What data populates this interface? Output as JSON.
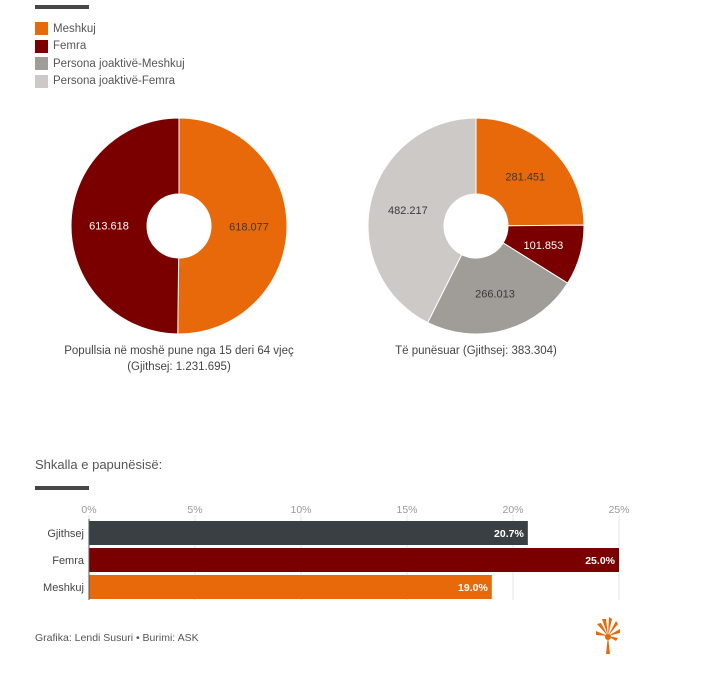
{
  "legend": [
    {
      "label": "Meshkuj",
      "color": "#E8690A"
    },
    {
      "label": "Femra",
      "color": "#7A0000"
    },
    {
      "label": "Persona joaktivë-Meshkuj",
      "color": "#A09C98"
    },
    {
      "label": "Persona joaktivë-Femra",
      "color": "#CDC9C6"
    }
  ],
  "charts": {
    "population_caption_line1": "Popullsia në moshë pune nga 15 deri 64 vjeç",
    "population_caption_line2": "(Gjithsej: 1.231.695)",
    "employed_caption": "Të punësuar (Gjithsej: 383.304)",
    "unemployment_title": "Shkalla e papunësisë:"
  },
  "footer": {
    "credit": "Grafika: Lendi Susuri • Burimi: ASK",
    "logo_icon": "torch-logo-icon"
  },
  "chart_data": [
    {
      "type": "pie",
      "title": "Popullsia në moshë pune nga 15 deri 64 vjeç (Gjithsej: 1.231.695)",
      "slices": [
        {
          "name": "Meshkuj",
          "value": 618077,
          "label": "618.077",
          "color": "#E8690A"
        },
        {
          "name": "Femra",
          "value": 613618,
          "label": "613.618",
          "color": "#7A0000"
        }
      ]
    },
    {
      "type": "pie",
      "title": "Të punësuar (Gjithsej: 383.304)",
      "slices": [
        {
          "name": "Meshkuj",
          "value": 281451,
          "label": "281.451",
          "color": "#E8690A"
        },
        {
          "name": "Femra",
          "value": 101853,
          "label": "101.853",
          "color": "#7A0000"
        },
        {
          "name": "Persona joaktivë-Meshkuj",
          "value": 266013,
          "label": "266.013",
          "color": "#A09C98"
        },
        {
          "name": "Persona joaktivë-Femra",
          "value": 482217,
          "label": "482.217",
          "color": "#CDC9C6"
        }
      ]
    },
    {
      "type": "bar",
      "orientation": "horizontal",
      "title": "Shkalla e papunësisë:",
      "categories": [
        "Gjithsej",
        "Femra",
        "Meshkuj"
      ],
      "values": [
        20.7,
        25.0,
        19.0
      ],
      "value_labels": [
        "20.7%",
        "25.0%",
        "19.0%"
      ],
      "colors": [
        "#3A3F44",
        "#7A0000",
        "#E8690A"
      ],
      "xlim": [
        0,
        25
      ],
      "ticks": [
        0,
        5,
        10,
        15,
        20,
        25
      ],
      "tick_labels": [
        "0%",
        "5%",
        "10%",
        "15%",
        "20%",
        "25%"
      ],
      "grid": true
    }
  ]
}
